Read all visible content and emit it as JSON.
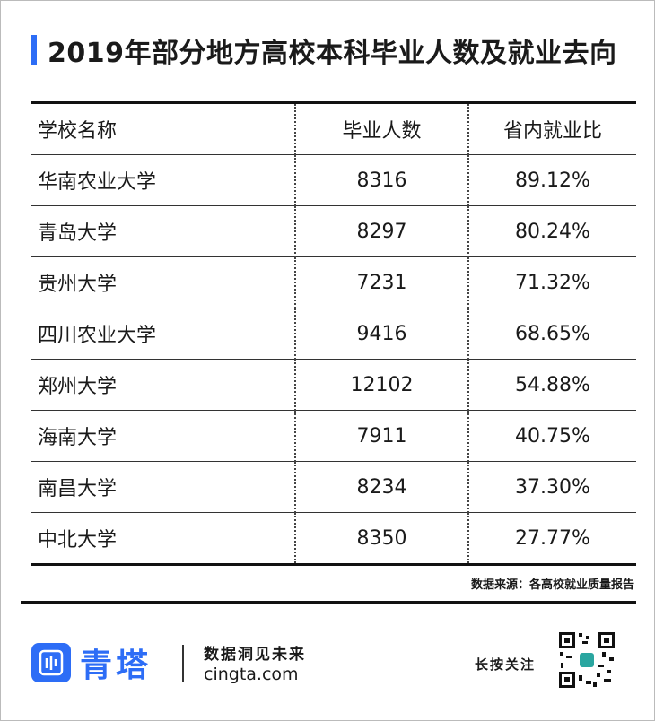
{
  "header": {
    "title": "2019年部分地方高校本科毕业人数及就业去向"
  },
  "table": {
    "columns": [
      "学校名称",
      "毕业人数",
      "省内就业比"
    ],
    "rows": [
      [
        "华南农业大学",
        "8316",
        "89.12%"
      ],
      [
        "青岛大学",
        "8297",
        "80.24%"
      ],
      [
        "贵州大学",
        "7231",
        "71.32%"
      ],
      [
        "四川农业大学",
        "9416",
        "68.65%"
      ],
      [
        "郑州大学",
        "12102",
        "54.88%"
      ],
      [
        "海南大学",
        "7911",
        "40.75%"
      ],
      [
        "南昌大学",
        "8234",
        "37.30%"
      ],
      [
        "中北大学",
        "8350",
        "27.77%"
      ]
    ]
  },
  "source": "数据来源：各高校就业质量报告",
  "footer": {
    "brand": "青塔",
    "slogan": "数据洞见未来",
    "website": "cingta.com",
    "follow": "长按关注"
  }
}
